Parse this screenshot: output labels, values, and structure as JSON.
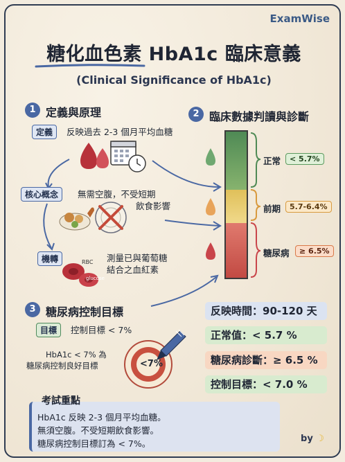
{
  "brand": "ExamWise",
  "title": "糖化血色素 HbA1c 臨床意義",
  "subtitle": "(Clinical Significance of HbA1c)",
  "section1": {
    "number": "1",
    "title": "定義與原理",
    "definition_tag": "定義",
    "definition_text": "反映過去 2-3 個月平均血糖",
    "concept_tag": "核心概念",
    "concept_line1": "無需空腹，不受短期",
    "concept_line2": "飲食影響",
    "mechanism_tag": "機轉",
    "mechanism_line1": "測量已與葡萄糖",
    "mechanism_line2": "結合之血紅素",
    "rbc_label": "RBC",
    "glucose_label": "glucose"
  },
  "section2": {
    "number": "2",
    "title": "臨床數據判讀與診斷",
    "levels": [
      {
        "label": "正常",
        "range": "< 5.7%",
        "color": "#5c9b5f"
      },
      {
        "label": "前期",
        "range": "5.7-6.4%",
        "color": "#e2b94a"
      },
      {
        "label": "糖尿病",
        "range": "≥ 6.5%",
        "color": "#d86a5e"
      }
    ]
  },
  "section3": {
    "number": "3",
    "title": "糖尿病控制目標",
    "target_tag": "目標",
    "target_text": "控制目標 < 7%",
    "note_line1": "HbA1c < 7% 為",
    "note_line2": "糖尿病控制良好目標",
    "target_value": "<7%"
  },
  "stats": [
    "反映時間：90-120 天",
    "正常值：< 5.7 %",
    "糖尿病診斷：≥ 6.5 %",
    "控制目標：< 7.0 %"
  ],
  "exam": {
    "title": "考試重點",
    "lines": [
      "HbA1c 反映 2-3 個月平均血糖。",
      "無須空腹。不受短期飲食影響。",
      "糖尿病控制目標訂為 < 7%。"
    ]
  },
  "byline": "by"
}
